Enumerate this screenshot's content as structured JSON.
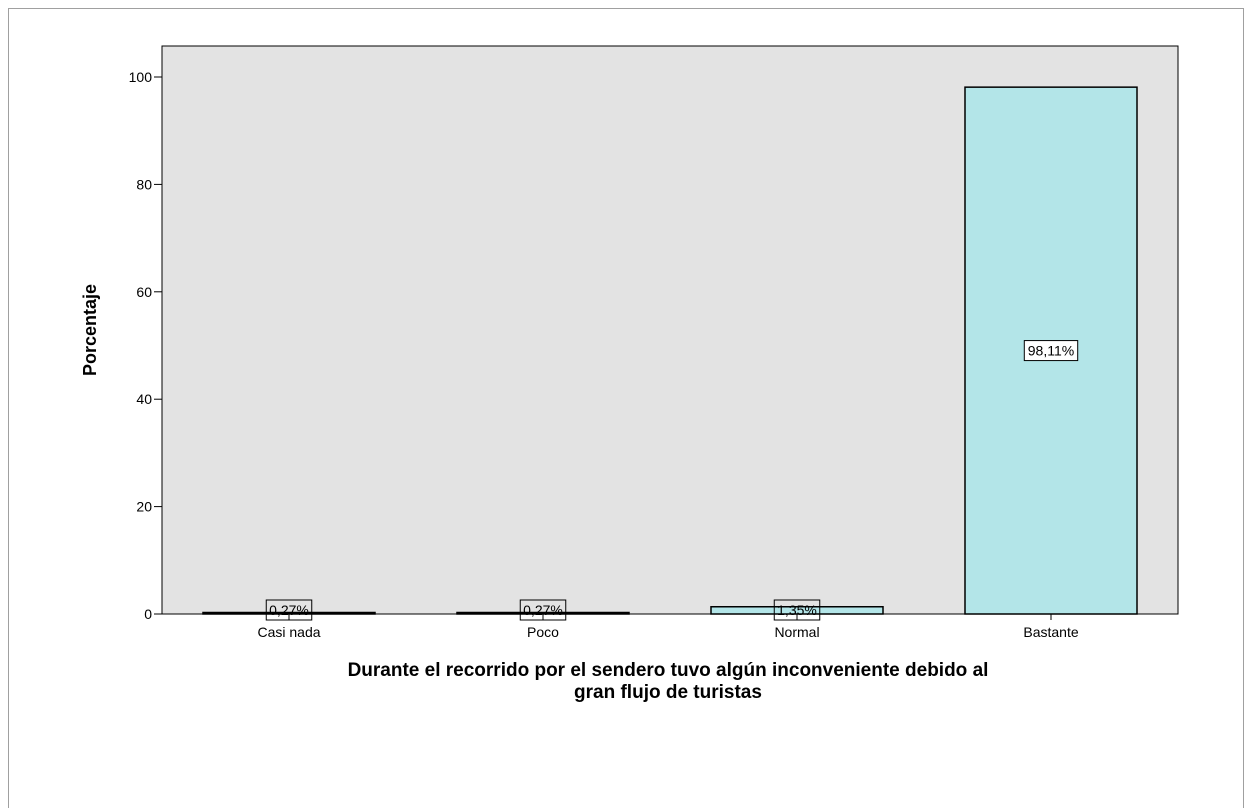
{
  "chart_data": {
    "type": "bar",
    "categories": [
      "Casi nada",
      "Poco",
      "Normal",
      "Bastante"
    ],
    "values": [
      0.27,
      0.27,
      1.35,
      98.11
    ],
    "data_labels": [
      "0,27%",
      "0,27%",
      "1,35%",
      "98,11%"
    ],
    "xlabel_lines": [
      "Durante el recorrido por el sendero tuvo algún inconveniente debido al",
      "gran flujo de turistas"
    ],
    "ylabel": "Porcentaje",
    "ylim": [
      0,
      100
    ],
    "yticks": [
      "0",
      "20",
      "40",
      "60",
      "80",
      "100"
    ],
    "grid": false,
    "colors": {
      "bar_fill": "#b3e5e8",
      "bar_stroke": "#000000",
      "plot_bg": "#e3e3e3"
    }
  }
}
